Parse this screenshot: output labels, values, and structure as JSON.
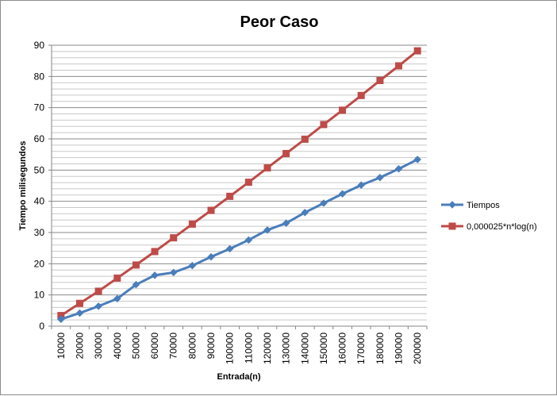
{
  "chart_data": {
    "type": "line",
    "title": "Peor Caso",
    "xlabel": "Entrada(n)",
    "ylabel": "Tiempo milisegundos",
    "ylim": [
      0,
      90
    ],
    "yticks": [
      "0",
      "10",
      "20",
      "30",
      "40",
      "50",
      "60",
      "70",
      "80",
      "90"
    ],
    "categories": [
      "10000",
      "20000",
      "30000",
      "40000",
      "50000",
      "60000",
      "70000",
      "80000",
      "90000",
      "100000",
      "110000",
      "120000",
      "130000",
      "140000",
      "150000",
      "160000",
      "170000",
      "180000",
      "190000",
      "200000"
    ],
    "grid": true,
    "legend_position": "right",
    "series": [
      {
        "name": "Tiempos",
        "color": "#4a7ebb",
        "marker": "diamond",
        "values": [
          2.2,
          4.2,
          6.4,
          8.8,
          13.3,
          16.3,
          17.2,
          19.4,
          22.2,
          24.8,
          27.6,
          30.8,
          33.0,
          36.4,
          39.4,
          42.4,
          45.2,
          47.6,
          50.4,
          53.4
        ]
      },
      {
        "name": "0,000025*n*log(n)",
        "color": "#be4b48",
        "marker": "square",
        "values": [
          3.4,
          7.3,
          11.2,
          15.4,
          19.6,
          23.9,
          28.3,
          32.7,
          37.1,
          41.6,
          46.1,
          50.7,
          55.3,
          59.9,
          64.6,
          69.2,
          73.9,
          78.7,
          83.4,
          88.2
        ]
      }
    ]
  }
}
